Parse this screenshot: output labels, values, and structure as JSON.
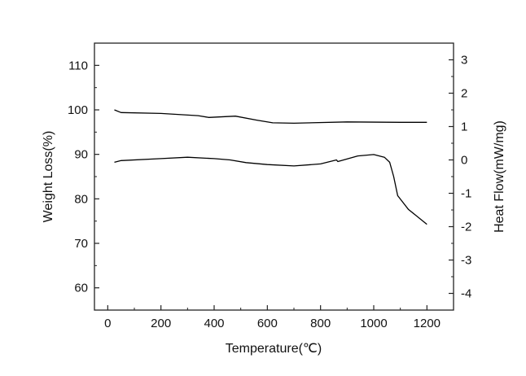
{
  "chart_data": {
    "type": "line",
    "title": "",
    "xlabel": "Temperature(℃)",
    "ylabel": "Weight Loss(%)",
    "y2label": "Heat Flow(mW/mg)",
    "xlim": [
      -50,
      1300
    ],
    "ylim": [
      55,
      115
    ],
    "y2lim": [
      -4.5,
      3.5
    ],
    "xticks": [
      0,
      200,
      400,
      600,
      800,
      1000,
      1200
    ],
    "yticks": [
      60,
      70,
      80,
      90,
      100,
      110
    ],
    "y2ticks": [
      -4,
      -3,
      -2,
      -1,
      0,
      1,
      2,
      3
    ],
    "grid": false,
    "legend": "none",
    "series": [
      {
        "name": "Weight Loss",
        "axis": "left",
        "color": "#000000",
        "x": [
          25,
          50,
          200,
          340,
          380,
          480,
          560,
          620,
          700,
          900,
          1100,
          1200
        ],
        "y": [
          100.0,
          99.4,
          99.2,
          98.7,
          98.3,
          98.6,
          97.7,
          97.1,
          97.0,
          97.3,
          97.2,
          97.2
        ]
      },
      {
        "name": "Heat Flow",
        "axis": "right",
        "color": "#000000",
        "x": [
          25,
          50,
          200,
          300,
          400,
          460,
          520,
          600,
          700,
          800,
          860,
          865,
          940,
          1000,
          1040,
          1060,
          1075,
          1090,
          1130,
          1200
        ],
        "y": [
          -0.07,
          -0.02,
          0.04,
          0.08,
          0.04,
          0.0,
          -0.08,
          -0.14,
          -0.18,
          -0.12,
          0.0,
          -0.05,
          0.12,
          0.16,
          0.08,
          -0.07,
          -0.5,
          -1.07,
          -1.48,
          -1.93
        ]
      }
    ]
  }
}
